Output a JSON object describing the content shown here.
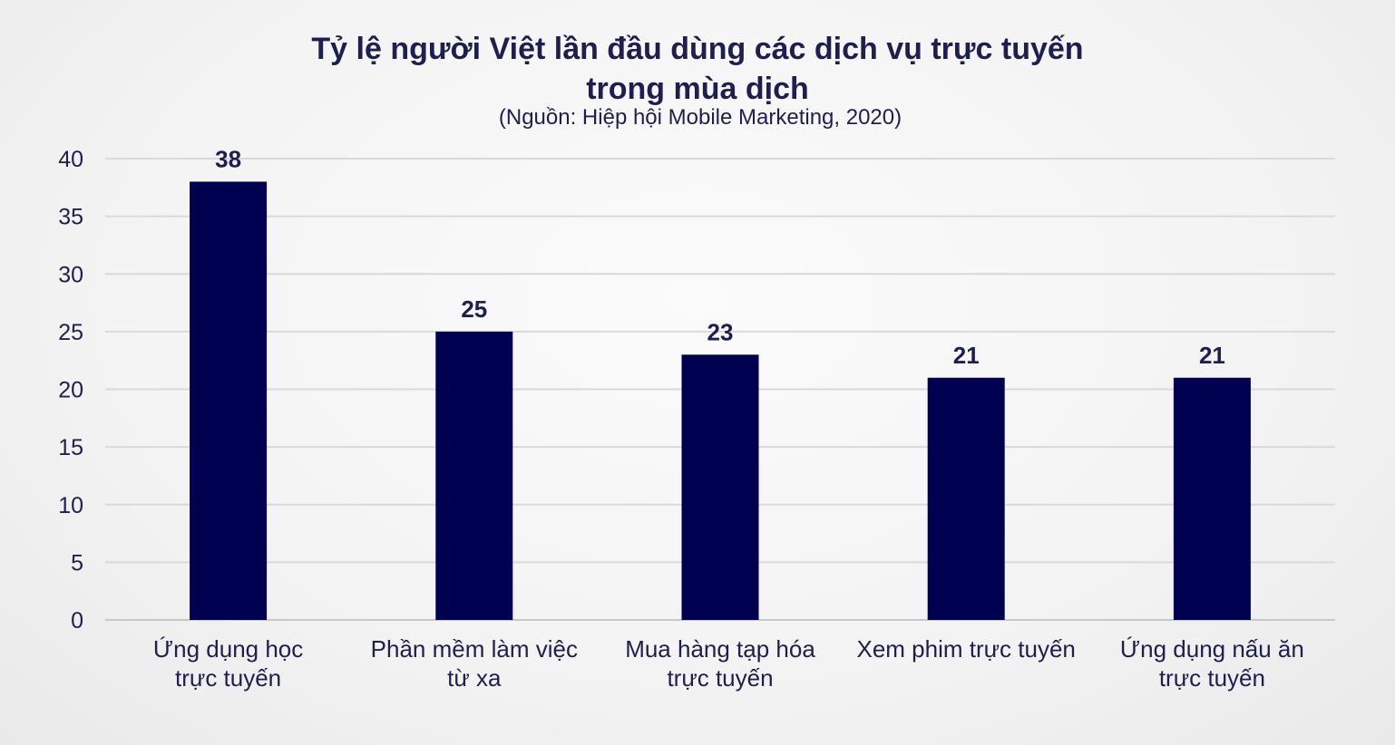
{
  "chart_data": {
    "type": "bar",
    "title_lines": [
      "Tỷ lệ người Việt lần đầu dùng các dịch vụ trực tuyến",
      "trong mùa dịch"
    ],
    "subtitle": "(Nguồn: Hiệp hội Mobile Marketing, 2020)",
    "categories": [
      "Ứng dụng học\ntrực tuyến",
      "Phần mềm làm việc\ntừ xa",
      "Mua hàng tạp hóa\ntrực tuyến",
      "Xem phim trực tuyến",
      "Ứng dụng nấu ăn\ntrực tuyến"
    ],
    "values": [
      38,
      25,
      23,
      21,
      21
    ],
    "ylim": [
      0,
      40
    ],
    "yticks": [
      0,
      5,
      10,
      15,
      20,
      25,
      30,
      35,
      40
    ],
    "grid": true,
    "data_labels": true,
    "bar_color": "#000050",
    "xlabel": "",
    "ylabel": ""
  }
}
